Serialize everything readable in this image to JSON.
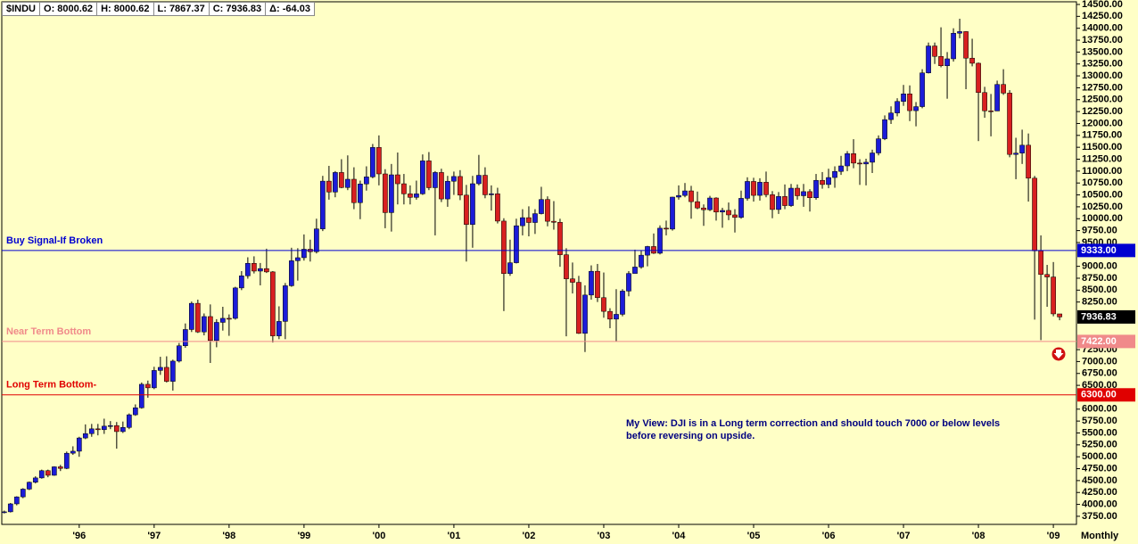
{
  "chart_data": {
    "type": "candlestick",
    "header": [
      "$INDU",
      "O: 8000.62",
      "H: 8000.62",
      "L: 7867.37",
      "C: 7936.83",
      "Δ: -64.03"
    ],
    "open": [
      3834,
      3844,
      4011,
      4158,
      4321,
      4465,
      4556,
      4708,
      4611,
      4789,
      4756,
      5075,
      5117,
      5395,
      5486,
      5587,
      5569,
      5643,
      5655,
      5529,
      5616,
      5882,
      6029,
      6522,
      6448,
      6813,
      6878,
      6584,
      7009,
      7331,
      7673,
      8223,
      7622,
      7945,
      7442,
      7823,
      7908,
      7907,
      8546,
      8800,
      9063,
      8900,
      8952,
      8883,
      7539,
      7843,
      8592,
      9117,
      9181,
      9359,
      9307,
      9786,
      10789,
      10560,
      10971,
      10655,
      10829,
      10337,
      10730,
      10878,
      11497,
      10941,
      10128,
      10922,
      10734,
      10522,
      10448,
      10522,
      11215,
      10651,
      10971,
      10415,
      10787,
      10887,
      10495,
      9879,
      10735,
      10912,
      10502,
      10523,
      9950,
      8848,
      9075,
      9852,
      10022,
      9920,
      10106,
      10404,
      9946,
      9925,
      9243,
      8737,
      8664,
      7592,
      8397,
      8896,
      8342,
      8054,
      7891,
      7992,
      8480,
      8850,
      8985,
      9234,
      9416,
      9275,
      9801,
      9782,
      10454,
      10488,
      10584,
      10358,
      10226,
      10188,
      10435,
      10140,
      10174,
      10080,
      10027,
      10428,
      10783,
      10490,
      10766,
      10504,
      10193,
      10467,
      10275,
      10641,
      10482,
      10569,
      10440,
      10806,
      10718,
      10865,
      10993,
      11109,
      11367,
      11168,
      11150,
      11186,
      11381,
      11679,
      12081,
      12221,
      12463,
      12622,
      12269,
      12354,
      13063,
      13628,
      13409,
      13212,
      13358,
      13896,
      13930,
      13372,
      13265,
      12650,
      12266,
      12263,
      12820,
      12638,
      11350,
      11378,
      11544,
      10851,
      9325,
      8829,
      8776,
      8000.62
    ],
    "high": [
      3870,
      4030,
      4170,
      4340,
      4480,
      4590,
      4730,
      4730,
      4800,
      4830,
      5110,
      5220,
      5420,
      5680,
      5690,
      5690,
      5800,
      5750,
      5730,
      5740,
      5910,
      6100,
      6560,
      6600,
      6890,
      7100,
      7110,
      7040,
      7390,
      7800,
      8260,
      8300,
      8010,
      8200,
      7890,
      8150,
      7990,
      8570,
      8900,
      9190,
      9210,
      9070,
      9370,
      8900,
      8160,
      8650,
      9390,
      9380,
      9670,
      9560,
      10000,
      10900,
      11110,
      11000,
      11250,
      11330,
      11080,
      10800,
      11100,
      11570,
      11750,
      11040,
      11150,
      11390,
      10940,
      10700,
      10800,
      11350,
      11400,
      11000,
      11050,
      10900,
      10990,
      11020,
      10710,
      10900,
      11340,
      11080,
      10700,
      10650,
      10010,
      9560,
      10000,
      10200,
      10260,
      10200,
      10670,
      10470,
      10370,
      10000,
      9380,
      9080,
      8800,
      8600,
      9020,
      9050,
      8870,
      8120,
      8520,
      8520,
      8900,
      9350,
      9340,
      9430,
      9690,
      9860,
      9960,
      10460,
      10700,
      10750,
      10690,
      10570,
      10300,
      10480,
      10450,
      10230,
      10340,
      10200,
      10590,
      10870,
      10860,
      10850,
      10990,
      10580,
      10560,
      10720,
      10730,
      10720,
      10730,
      10620,
      10940,
      10980,
      11050,
      11100,
      11320,
      11420,
      11670,
      11250,
      11260,
      11450,
      11750,
      12170,
      12360,
      12530,
      12810,
      12800,
      12450,
      13140,
      13700,
      13700,
      14020,
      13500,
      14000,
      14200,
      13940,
      13780,
      13280,
      12770,
      12620,
      12900,
      13140,
      12700,
      11700,
      11870,
      11790,
      10900,
      9650,
      9030,
      9090,
      8000.62
    ],
    "low": [
      3810,
      3830,
      3980,
      4130,
      4300,
      4440,
      4540,
      4570,
      4600,
      4700,
      4740,
      5040,
      5000,
      5370,
      5420,
      5450,
      5480,
      5580,
      5170,
      5500,
      5580,
      5860,
      6010,
      6240,
      6420,
      6720,
      6560,
      6390,
      6980,
      7290,
      7620,
      7600,
      7550,
      6970,
      7300,
      7650,
      7540,
      7880,
      8500,
      8740,
      8850,
      8600,
      8860,
      7400,
      7470,
      7470,
      8570,
      8700,
      9120,
      9100,
      9270,
      9740,
      10400,
      10450,
      10640,
      10600,
      10200,
      9990,
      10590,
      10850,
      10700,
      9800,
      9730,
      10300,
      10300,
      10300,
      10400,
      10500,
      10600,
      9650,
      10350,
      10250,
      10500,
      10390,
      9100,
      9390,
      10700,
      10430,
      10170,
      9900,
      8060,
      8800,
      9060,
      9650,
      9630,
      9680,
      10090,
      9840,
      9770,
      8990,
      7530,
      8430,
      7580,
      7200,
      8300,
      8250,
      7920,
      7700,
      7420,
      7950,
      8370,
      8850,
      8950,
      9000,
      9260,
      9250,
      9650,
      9750,
      10400,
      10450,
      10000,
      10200,
      9850,
      10160,
      9960,
      9810,
      9970,
      9710,
      10000,
      10380,
      10360,
      10380,
      10450,
      10010,
      10100,
      10200,
      10250,
      10400,
      10250,
      10150,
      10400,
      10630,
      10640,
      10650,
      10920,
      11000,
      11060,
      10710,
      10700,
      10960,
      11330,
      11650,
      11990,
      12150,
      12370,
      12050,
      11940,
      12320,
      13050,
      13250,
      13180,
      12520,
      13300,
      13790,
      12720,
      13200,
      11630,
      12120,
      11730,
      12260,
      12600,
      11290,
      10830,
      11150,
      10360,
      7880,
      7450,
      8150,
      7950,
      7867.37
    ],
    "close": [
      3844,
      4011,
      4158,
      4321,
      4465,
      4556,
      4708,
      4611,
      4789,
      4756,
      5075,
      5117,
      5395,
      5486,
      5587,
      5569,
      5643,
      5655,
      5529,
      5616,
      5882,
      6029,
      6522,
      6448,
      6813,
      6878,
      6584,
      7009,
      7331,
      7673,
      8223,
      7622,
      7945,
      7442,
      7823,
      7908,
      7907,
      8546,
      8800,
      9063,
      8900,
      8952,
      8883,
      7539,
      7843,
      8592,
      9117,
      9181,
      9359,
      9307,
      9786,
      10789,
      10560,
      10971,
      10655,
      10829,
      10337,
      10730,
      10878,
      11497,
      10941,
      10128,
      10922,
      10734,
      10522,
      10448,
      10522,
      11215,
      10651,
      10971,
      10415,
      10787,
      10887,
      10495,
      9879,
      10735,
      10912,
      10502,
      10523,
      9950,
      8848,
      9075,
      9852,
      10022,
      9920,
      10106,
      10404,
      9946,
      9925,
      9243,
      8737,
      8664,
      7592,
      8397,
      8896,
      8342,
      8054,
      7891,
      7992,
      8480,
      8850,
      8985,
      9234,
      9416,
      9275,
      9801,
      9782,
      10454,
      10488,
      10584,
      10358,
      10226,
      10188,
      10435,
      10140,
      10174,
      10080,
      10027,
      10428,
      10783,
      10490,
      10766,
      10504,
      10193,
      10467,
      10275,
      10641,
      10482,
      10569,
      10440,
      10806,
      10718,
      10865,
      10993,
      11109,
      11367,
      11168,
      11150,
      11186,
      11381,
      11679,
      12081,
      12221,
      12463,
      12622,
      12269,
      12354,
      13063,
      13628,
      13409,
      13212,
      13358,
      13896,
      13930,
      13372,
      13265,
      12650,
      12266,
      12263,
      12820,
      12638,
      11350,
      11378,
      11544,
      10851,
      9325,
      8829,
      8776,
      8001,
      7936.83
    ],
    "up_color": "#1c1cd8",
    "down_color": "#d82020",
    "levels": [
      {
        "name": "Buy Signal-If Broken",
        "value": 9333,
        "label": "9333.00",
        "color": "#0000d0"
      },
      {
        "name": "Near Term Bottom",
        "value": 7422,
        "label": "7422.00",
        "color": "#f08a8a"
      },
      {
        "name": "Long Term Bottom-",
        "value": 6300,
        "label": "6300.00",
        "color": "#e00000"
      }
    ],
    "annotation": [
      "My View:  DJI is in a Long term correction and should touch 7000 or below levels",
      "before reversing on upside."
    ],
    "period_label": "Monthly",
    "ylim": [
      3580,
      14556
    ],
    "yticks": [
      {
        "value": 3750,
        "label": "3750.00"
      },
      {
        "value": 4000,
        "label": "4000.00"
      },
      {
        "value": 4250,
        "label": "4250.00"
      },
      {
        "value": 4500,
        "label": "4500.00"
      },
      {
        "value": 4750,
        "label": "4750.00"
      },
      {
        "value": 5000,
        "label": "5000.00"
      },
      {
        "value": 5250,
        "label": "5250.00"
      },
      {
        "value": 5500,
        "label": "5500.00"
      },
      {
        "value": 5750,
        "label": "5750.00"
      },
      {
        "value": 6000,
        "label": "6000.00"
      },
      {
        "value": 6500,
        "label": "6500.00"
      },
      {
        "value": 6750,
        "label": "6750.00"
      },
      {
        "value": 7000,
        "label": "7000.00"
      },
      {
        "value": 7250,
        "label": "7250.00"
      },
      {
        "value": 8250,
        "label": "8250.00"
      },
      {
        "value": 8500,
        "label": "8500.00"
      },
      {
        "value": 8750,
        "label": "8750.00"
      },
      {
        "value": 9000,
        "label": "9000.00"
      },
      {
        "value": 9500,
        "label": "9500.00"
      },
      {
        "value": 9750,
        "label": "9750.00"
      },
      {
        "value": 10000,
        "label": "10000.00"
      },
      {
        "value": 10250,
        "label": "10250.00"
      },
      {
        "value": 10500,
        "label": "10500.00"
      },
      {
        "value": 10750,
        "label": "10750.00"
      },
      {
        "value": 11000,
        "label": "11000.00"
      },
      {
        "value": 11250,
        "label": "11250.00"
      },
      {
        "value": 11500,
        "label": "11500.00"
      },
      {
        "value": 11750,
        "label": "11750.00"
      },
      {
        "value": 12000,
        "label": "12000.00"
      },
      {
        "value": 12250,
        "label": "12250.00"
      },
      {
        "value": 12500,
        "label": "12500.00"
      },
      {
        "value": 12750,
        "label": "12750.00"
      },
      {
        "value": 13000,
        "label": "13000.00"
      },
      {
        "value": 13250,
        "label": "13250.00"
      },
      {
        "value": 13500,
        "label": "13500.00"
      },
      {
        "value": 13750,
        "label": "13750.00"
      },
      {
        "value": 14000,
        "label": "14000.00"
      },
      {
        "value": 14250,
        "label": "14250.00"
      },
      {
        "value": 14500,
        "label": "14500.00"
      }
    ],
    "xlim": [
      -0.4,
      171.7
    ],
    "xticks": [
      {
        "value": 12,
        "label": "'96"
      },
      {
        "value": 24,
        "label": "'97"
      },
      {
        "value": 36,
        "label": "'98"
      },
      {
        "value": 48,
        "label": "'99"
      },
      {
        "value": 60,
        "label": "'00"
      },
      {
        "value": 72,
        "label": "'01"
      },
      {
        "value": 84,
        "label": "'02"
      },
      {
        "value": 96,
        "label": "'03"
      },
      {
        "value": 108,
        "label": "'04"
      },
      {
        "value": 120,
        "label": "'05"
      },
      {
        "value": 132,
        "label": "'06"
      },
      {
        "value": 144,
        "label": "'07"
      },
      {
        "value": 156,
        "label": "'08"
      },
      {
        "value": 168,
        "label": "'09"
      }
    ]
  }
}
